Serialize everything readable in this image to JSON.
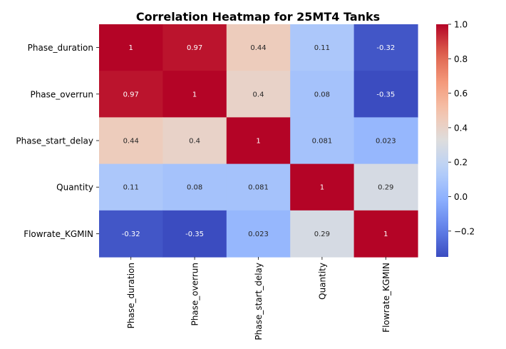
{
  "chart_data": {
    "type": "heatmap",
    "title": "Correlation Heatmap for 25MT4 Tanks",
    "row_labels": [
      "Phase_duration",
      "Phase_overrun",
      "Phase_start_delay",
      "Quantity",
      "Flowrate_KGMIN"
    ],
    "col_labels": [
      "Phase_duration",
      "Phase_overrun",
      "Phase_start_delay",
      "Quantity",
      "Flowrate_KGMIN"
    ],
    "values": [
      [
        1,
        0.97,
        0.44,
        0.11,
        -0.32
      ],
      [
        0.97,
        1,
        0.4,
        0.08,
        -0.35
      ],
      [
        0.44,
        0.4,
        1,
        0.081,
        0.023
      ],
      [
        0.11,
        0.08,
        0.081,
        1,
        0.29
      ],
      [
        -0.32,
        -0.35,
        0.023,
        0.29,
        1
      ]
    ],
    "annotations": [
      [
        "1",
        "0.97",
        "0.44",
        "0.11",
        "-0.32"
      ],
      [
        "0.97",
        "1",
        "0.4",
        "0.08",
        "-0.35"
      ],
      [
        "0.44",
        "0.4",
        "1",
        "0.081",
        "0.023"
      ],
      [
        "0.11",
        "0.08",
        "0.081",
        "1",
        "0.29"
      ],
      [
        "-0.32",
        "-0.35",
        "0.023",
        "0.29",
        "1"
      ]
    ],
    "colormap": "coolwarm",
    "colorbar": {
      "vmin": -0.35,
      "vmax": 1.0,
      "ticks": [
        1.0,
        0.8,
        0.6,
        0.4,
        0.2,
        0.0,
        -0.2
      ],
      "tick_labels": [
        "1.0",
        "0.8",
        "0.6",
        "0.4",
        "0.2",
        "0.0",
        "−0.2"
      ]
    }
  }
}
